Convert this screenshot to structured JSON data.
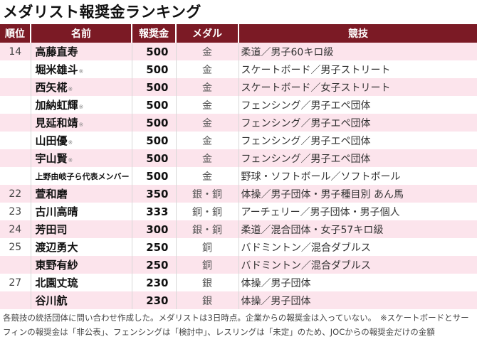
{
  "title": "メダリスト報奨金ランキング",
  "columns": [
    "順位",
    "名前",
    "報奨金",
    "メダル",
    "競技"
  ],
  "colors": {
    "header_bg": "#7b1a25",
    "row_pink": "#fce4ec",
    "row_white": "#ffffff"
  },
  "rows": [
    {
      "rank": "14",
      "name": "高藤直寿",
      "mark": "",
      "amount": "500",
      "medal": "金",
      "event": "柔道／男子60キロ級"
    },
    {
      "rank": "",
      "name": "堀米雄斗",
      "mark": "※",
      "amount": "500",
      "medal": "金",
      "event": "スケートボード／男子ストリート"
    },
    {
      "rank": "",
      "name": "西矢椛",
      "mark": "※",
      "amount": "500",
      "medal": "金",
      "event": "スケートボード／女子ストリート"
    },
    {
      "rank": "",
      "name": "加納虹輝",
      "mark": "※",
      "amount": "500",
      "medal": "金",
      "event": "フェンシング／男子エペ団体"
    },
    {
      "rank": "",
      "name": "見延和靖",
      "mark": "※",
      "amount": "500",
      "medal": "金",
      "event": "フェンシング／男子エペ団体"
    },
    {
      "rank": "",
      "name": "山田優",
      "mark": "※",
      "amount": "500",
      "medal": "金",
      "event": "フェンシング／男子エペ団体"
    },
    {
      "rank": "",
      "name": "宇山賢",
      "mark": "※",
      "amount": "500",
      "medal": "金",
      "event": "フェンシング／男子エペ団体"
    },
    {
      "rank": "",
      "name": "上野由岐子ら代表メンバー",
      "mark": "",
      "amount": "500",
      "medal": "金",
      "event": "野球・ソフトボール／ソフトボール"
    },
    {
      "rank": "22",
      "name": "萱和磨",
      "mark": "",
      "amount": "350",
      "medal": "銀・銅",
      "event": "体操／男子団体・男子種目別 あん馬"
    },
    {
      "rank": "23",
      "name": "古川高晴",
      "mark": "",
      "amount": "333",
      "medal": "銅・銅",
      "event": "アーチェリー／男子団体・男子個人"
    },
    {
      "rank": "24",
      "name": "芳田司",
      "mark": "",
      "amount": "300",
      "medal": "銀・銅",
      "event": "柔道／混合団体・女子57キロ級"
    },
    {
      "rank": "25",
      "name": "渡辺勇大",
      "mark": "",
      "amount": "250",
      "medal": "銅",
      "event": "バドミントン／混合ダブルス"
    },
    {
      "rank": "",
      "name": "東野有紗",
      "mark": "",
      "amount": "250",
      "medal": "銅",
      "event": "バドミントン／混合ダブルス"
    },
    {
      "rank": "27",
      "name": "北園丈琉",
      "mark": "",
      "amount": "230",
      "medal": "銀",
      "event": "体操／男子団体"
    },
    {
      "rank": "",
      "name": "谷川航",
      "mark": "",
      "amount": "230",
      "medal": "銀",
      "event": "体操／男子団体"
    }
  ],
  "footer": "各競技の統括団体に問い合わせ作成した。メダリストは3日時点。企業からの報奨金は入っていない。　※スケートボードとサーフィンの報奨金は「非公表」、フェンシングは「検討中」、レスリングは「未定」のため、JOCからの報奨金だけの金額"
}
